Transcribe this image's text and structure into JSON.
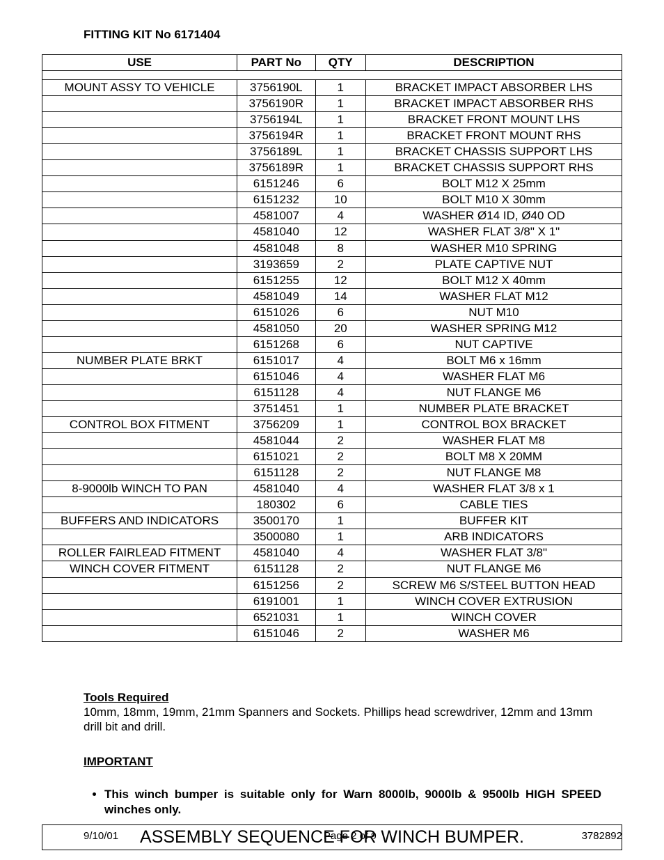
{
  "kit_title": "FITTING KIT No 6171404",
  "headers": {
    "use": "USE",
    "part": "PART No",
    "qty": "QTY",
    "desc": "DESCRIPTION"
  },
  "rows": [
    {
      "use": "MOUNT ASSY TO VEHICLE",
      "part": "3756190L",
      "qty": "1",
      "desc": "BRACKET IMPACT ABSORBER LHS"
    },
    {
      "use": "",
      "part": "3756190R",
      "qty": "1",
      "desc": "BRACKET IMPACT ABSORBER RHS"
    },
    {
      "use": "",
      "part": "3756194L",
      "qty": "1",
      "desc": "BRACKET FRONT MOUNT LHS"
    },
    {
      "use": "",
      "part": "3756194R",
      "qty": "1",
      "desc": "BRACKET FRONT MOUNT RHS"
    },
    {
      "use": "",
      "part": "3756189L",
      "qty": "1",
      "desc": "BRACKET CHASSIS SUPPORT LHS"
    },
    {
      "use": "",
      "part": "3756189R",
      "qty": "1",
      "desc": "BRACKET CHASSIS SUPPORT RHS"
    },
    {
      "use": "",
      "part": "6151246",
      "qty": "6",
      "desc": "BOLT M12 X 25mm"
    },
    {
      "use": "",
      "part": "6151232",
      "qty": "10",
      "desc": "BOLT M10 X 30mm"
    },
    {
      "use": "",
      "part": "4581007",
      "qty": "4",
      "desc": "WASHER Ø14 ID, Ø40 OD"
    },
    {
      "use": "",
      "part": "4581040",
      "qty": "12",
      "desc": "WASHER FLAT 3/8\" X 1\""
    },
    {
      "use": "",
      "part": "4581048",
      "qty": "8",
      "desc": "WASHER M10 SPRING"
    },
    {
      "use": "",
      "part": "3193659",
      "qty": "2",
      "desc": "PLATE CAPTIVE NUT"
    },
    {
      "use": "",
      "part": "6151255",
      "qty": "12",
      "desc": "BOLT M12 X 40mm"
    },
    {
      "use": "",
      "part": "4581049",
      "qty": "14",
      "desc": "WASHER FLAT M12"
    },
    {
      "use": "",
      "part": "6151026",
      "qty": "6",
      "desc": "NUT M10"
    },
    {
      "use": "",
      "part": "4581050",
      "qty": "20",
      "desc": "WASHER SPRING M12"
    },
    {
      "use": "",
      "part": "6151268",
      "qty": "6",
      "desc": "NUT CAPTIVE"
    },
    {
      "use": "NUMBER PLATE BRKT",
      "part": "6151017",
      "qty": "4",
      "desc": "BOLT M6 x 16mm"
    },
    {
      "use": "",
      "part": "6151046",
      "qty": "4",
      "desc": "WASHER FLAT M6"
    },
    {
      "use": "",
      "part": "6151128",
      "qty": "4",
      "desc": "NUT FLANGE M6"
    },
    {
      "use": "",
      "part": "3751451",
      "qty": "1",
      "desc": "NUMBER PLATE BRACKET"
    },
    {
      "use": "CONTROL BOX FITMENT",
      "part": "3756209",
      "qty": "1",
      "desc": "CONTROL BOX BRACKET"
    },
    {
      "use": "",
      "part": "4581044",
      "qty": "2",
      "desc": "WASHER FLAT M8"
    },
    {
      "use": "",
      "part": "6151021",
      "qty": "2",
      "desc": "BOLT M8 X 20MM"
    },
    {
      "use": "",
      "part": "6151128",
      "qty": "2",
      "desc": "NUT FLANGE M8"
    },
    {
      "use": "8-9000lb WINCH TO PAN",
      "part": "4581040",
      "qty": "4",
      "desc": "WASHER FLAT 3/8 x 1"
    },
    {
      "use": "",
      "part": "180302",
      "qty": "6",
      "desc": "CABLE TIES"
    },
    {
      "use": "BUFFERS AND INDICATORS",
      "part": "3500170",
      "qty": "1",
      "desc": "BUFFER KIT"
    },
    {
      "use": "",
      "part": "3500080",
      "qty": "1",
      "desc": "ARB INDICATORS"
    },
    {
      "use": "ROLLER FAIRLEAD FITMENT",
      "part": "4581040",
      "qty": "4",
      "desc": "WASHER FLAT 3/8\""
    },
    {
      "use": "WINCH COVER FITMENT",
      "part": "6151128",
      "qty": "2",
      "desc": "NUT FLANGE M6"
    },
    {
      "use": "",
      "part": "6151256",
      "qty": "2",
      "desc": "SCREW M6 S/STEEL BUTTON HEAD"
    },
    {
      "use": "",
      "part": "6191001",
      "qty": "1",
      "desc": "WINCH COVER EXTRUSION"
    },
    {
      "use": "",
      "part": "6521031",
      "qty": "1",
      "desc": "WINCH COVER"
    },
    {
      "use": "",
      "part": "6151046",
      "qty": "2",
      "desc": "WASHER M6"
    }
  ],
  "tools_heading": "Tools Required",
  "tools_body": "10mm, 18mm, 19mm, 21mm Spanners and Sockets. Phillips head screwdriver, 12mm and 13mm drill bit and drill.",
  "important_heading": "IMPORTANT",
  "important_item": "This winch bumper is suitable only for Warn 8000lb, 9000lb & 9500lb HIGH SPEED winches only.",
  "assembly_title": "ASSEMBLY SEQUENCE FOR WINCH BUMPER.",
  "footer": {
    "date": "9/10/01",
    "page_prefix": "Page 2 of ",
    "page_total": "9",
    "doc_no": "3782892"
  }
}
